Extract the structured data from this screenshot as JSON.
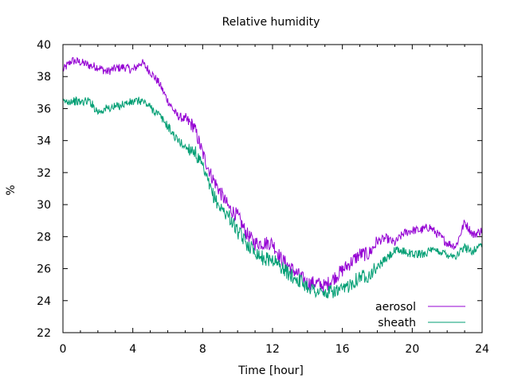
{
  "chart_data": {
    "type": "line",
    "title": "Relative humidity",
    "xlabel": "Time [hour]",
    "ylabel": "%",
    "xlim": [
      0,
      24
    ],
    "ylim": [
      22,
      40
    ],
    "xticks": [
      0,
      4,
      8,
      12,
      16,
      20,
      24
    ],
    "xtick_labels": [
      "0",
      "4",
      "8",
      "12",
      "16",
      "20",
      "24"
    ],
    "yticks": [
      22,
      24,
      26,
      28,
      30,
      32,
      34,
      36,
      38,
      40
    ],
    "ytick_labels": [
      "22",
      "24",
      "26",
      "28",
      "30",
      "32",
      "34",
      "36",
      "38",
      "40"
    ],
    "grid": false,
    "legend_position": "bottom-right",
    "series": [
      {
        "name": "aerosol",
        "color": "#9400d3",
        "x": [
          0,
          0.5,
          1,
          1.5,
          2,
          2.5,
          3,
          3.5,
          4,
          4.5,
          5,
          5.5,
          6,
          6.5,
          7,
          7.5,
          8,
          8.5,
          9,
          9.5,
          10,
          10.5,
          11,
          11.5,
          12,
          12.5,
          13,
          13.5,
          14,
          14.5,
          15,
          15.5,
          16,
          16.5,
          17,
          17.5,
          18,
          18.5,
          19,
          19.5,
          20,
          20.5,
          21,
          21.5,
          22,
          22.5,
          23,
          23.5,
          24
        ],
        "y": [
          38.4,
          39.0,
          38.9,
          38.7,
          38.6,
          38.3,
          38.5,
          38.6,
          38.4,
          38.9,
          38.3,
          37.6,
          36.5,
          35.6,
          35.3,
          34.9,
          33.2,
          31.8,
          30.8,
          29.8,
          29.3,
          28.2,
          27.6,
          27.6,
          27.6,
          26.6,
          26.1,
          25.6,
          25.1,
          25.1,
          24.9,
          25.4,
          25.9,
          26.4,
          26.9,
          26.9,
          27.7,
          27.9,
          27.6,
          28.2,
          28.4,
          28.4,
          28.6,
          28.1,
          27.6,
          27.4,
          28.9,
          28.1,
          28.4
        ]
      },
      {
        "name": "sheath",
        "color": "#009e73",
        "x": [
          0,
          0.5,
          1,
          1.5,
          2,
          2.5,
          3,
          3.5,
          4,
          4.5,
          5,
          5.5,
          6,
          6.5,
          7,
          7.5,
          8,
          8.5,
          9,
          9.5,
          10,
          10.5,
          11,
          11.5,
          12,
          12.5,
          13,
          13.5,
          14,
          14.5,
          15,
          15.5,
          16,
          16.5,
          17,
          17.5,
          18,
          18.5,
          19,
          19.5,
          20,
          20.5,
          21,
          21.5,
          22,
          22.5,
          23,
          23.5,
          24
        ],
        "y": [
          36.4,
          36.5,
          36.4,
          36.5,
          35.8,
          36.0,
          36.1,
          36.3,
          36.4,
          36.5,
          36.1,
          35.6,
          34.9,
          34.1,
          33.6,
          33.4,
          32.3,
          30.8,
          29.8,
          29.3,
          28.3,
          27.6,
          27.1,
          26.6,
          26.6,
          26.1,
          25.6,
          25.3,
          24.9,
          24.6,
          24.4,
          24.6,
          24.6,
          25.1,
          25.5,
          25.6,
          26.1,
          26.6,
          27.1,
          27.1,
          26.9,
          26.9,
          27.1,
          27.1,
          26.9,
          26.8,
          27.3,
          27.1,
          27.6
        ]
      }
    ]
  }
}
